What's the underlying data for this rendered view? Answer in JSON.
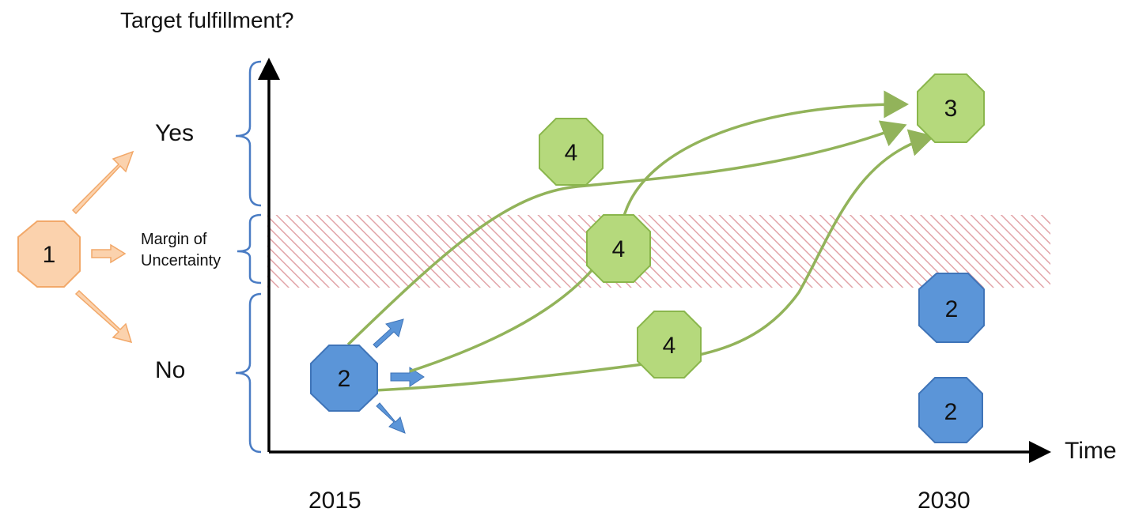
{
  "axes": {
    "y_title": "Target fulfillment?",
    "x_title": "Time",
    "x_ticks": [
      "2015",
      "2030"
    ]
  },
  "categories": {
    "yes": "Yes",
    "margin_line1": "Margin of",
    "margin_line2": "Uncertainty",
    "no": "No"
  },
  "nodes": {
    "start": "1",
    "current": "2",
    "future_low_1": "2",
    "future_low_2": "2",
    "target_met": "3",
    "path_a": "4",
    "path_b": "4",
    "path_c": "4"
  },
  "colors": {
    "orange_fill": "#fbd2ad",
    "orange_stroke": "#f2a869",
    "green_fill": "#b5d97c",
    "green_stroke": "#8ab64c",
    "blue_fill": "#5b95d8",
    "blue_stroke": "#3f74b8",
    "bracket": "#4a7cc4",
    "hatch": "#e2a4a8",
    "curve": "#92b35a"
  }
}
